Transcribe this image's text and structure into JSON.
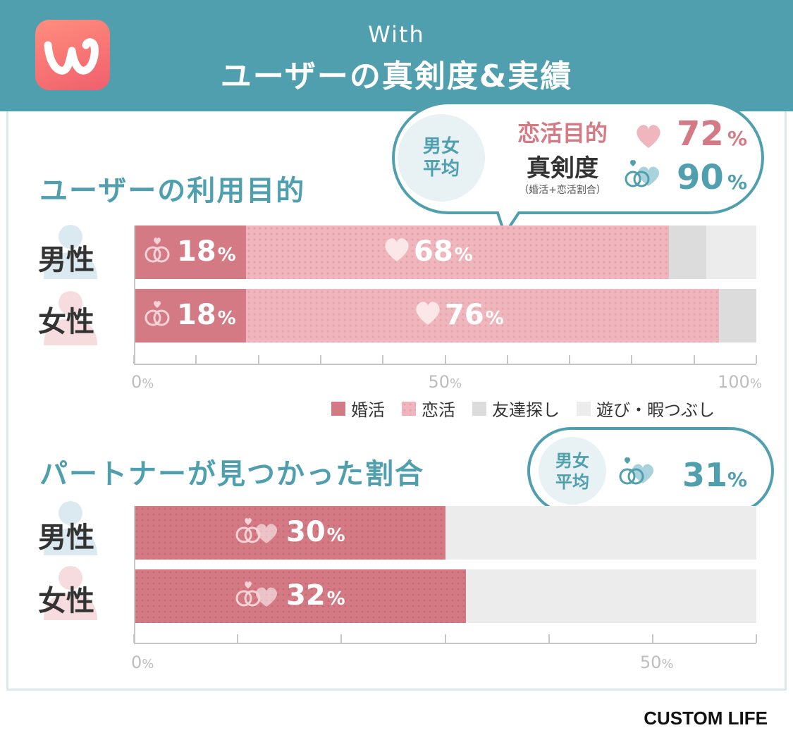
{
  "header": {
    "app_name": "With",
    "title": "ユーザーの真剣度&実績",
    "logo_icon": "with-logo-icon",
    "bg_color": "#4f9fae"
  },
  "purpose_section": {
    "title": "ユーザーの利用目的",
    "bubble": {
      "badge": [
        "男女",
        "平均"
      ],
      "renkatsu_label": "恋活目的",
      "renkatsu_value": "72",
      "seriousness_label": "真剣度",
      "seriousness_note": "（婚活+恋活割合）",
      "seriousness_value": "90",
      "percent_sign": "%"
    }
  },
  "found_section": {
    "title": "パートナーが見つかった割合",
    "bubble": {
      "badge": [
        "男女",
        "平均"
      ],
      "value": "31",
      "percent_sign": "%"
    }
  },
  "legend": [
    "婚活",
    "恋活",
    "友達探し",
    "遊び・暇つぶし"
  ],
  "credit": "CUSTOM LIFE",
  "colors": {
    "konkatsu": "#d47a85",
    "renkatsu": "#efb7bd",
    "tomodachi": "#dcdcdc",
    "asobi": "#ececec",
    "teal": "#4f9fae"
  },
  "chart_data": [
    {
      "type": "bar",
      "orientation": "horizontal",
      "stacked": true,
      "title": "ユーザーの利用目的",
      "categories": [
        "男性",
        "女性"
      ],
      "series": [
        {
          "name": "婚活",
          "values": [
            18,
            18
          ]
        },
        {
          "name": "恋活",
          "values": [
            68,
            76
          ]
        },
        {
          "name": "友達探し",
          "values": [
            6,
            6
          ]
        },
        {
          "name": "遊び・暇つぶし",
          "values": [
            8,
            0
          ]
        }
      ],
      "data_labels": [
        {
          "category": "男性",
          "series": "婚活",
          "text": "18",
          "unit": "%"
        },
        {
          "category": "男性",
          "series": "恋活",
          "text": "68",
          "unit": "%"
        },
        {
          "category": "女性",
          "series": "婚活",
          "text": "18",
          "unit": "%"
        },
        {
          "category": "女性",
          "series": "恋活",
          "text": "76",
          "unit": "%"
        }
      ],
      "xlim": [
        0,
        100
      ],
      "tick_labels": [
        {
          "value": 0,
          "text": "0",
          "unit": "%"
        },
        {
          "value": 50,
          "text": "50",
          "unit": "%"
        },
        {
          "value": 100,
          "text": "100",
          "unit": "%"
        }
      ],
      "grid": false,
      "legend_position": "bottom-right"
    },
    {
      "type": "bar",
      "orientation": "horizontal",
      "title": "パートナーが見つかった割合",
      "categories": [
        "男性",
        "女性"
      ],
      "series": [
        {
          "name": "",
          "values": [
            30,
            32
          ]
        }
      ],
      "data_labels": [
        {
          "category": "男性",
          "text": "30",
          "unit": "%"
        },
        {
          "category": "女性",
          "text": "32",
          "unit": "%"
        }
      ],
      "xlim": [
        0,
        60
      ],
      "tick_labels": [
        {
          "value": 0,
          "text": "0",
          "unit": "%"
        },
        {
          "value": 50,
          "text": "50",
          "unit": "%"
        }
      ],
      "grid": false,
      "legend_position": "none"
    }
  ]
}
